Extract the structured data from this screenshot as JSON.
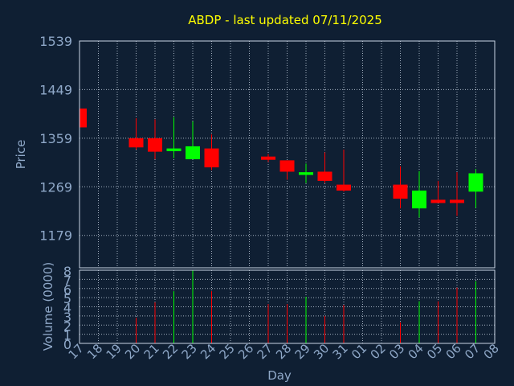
{
  "chart_data": [
    {
      "type": "candlestick",
      "title": "ABDP - last updated 07/11/2025",
      "ylabel": "Price",
      "ylim": [
        1119,
        1539
      ],
      "yticks": [
        1179,
        1269,
        1359,
        1449,
        1539
      ],
      "categories": [
        "17",
        "18",
        "19",
        "20",
        "21",
        "22",
        "23",
        "24",
        "25",
        "26",
        "27",
        "28",
        "29",
        "30",
        "31",
        "01",
        "02",
        "03",
        "04",
        "05",
        "06",
        "07",
        "08"
      ],
      "candles": [
        {
          "day": "17",
          "open": 1414,
          "close": 1379,
          "high": 1414,
          "low": 1379
        },
        {
          "day": "20",
          "open": 1359,
          "close": 1342,
          "high": 1396,
          "low": 1338
        },
        {
          "day": "21",
          "open": 1359,
          "close": 1334,
          "high": 1394,
          "low": 1320
        },
        {
          "day": "22",
          "open": 1335,
          "close": 1340,
          "high": 1398,
          "low": 1322
        },
        {
          "day": "23",
          "open": 1320,
          "close": 1344,
          "high": 1390,
          "low": 1320
        },
        {
          "day": "24",
          "open": 1340,
          "close": 1305,
          "high": 1366,
          "low": 1300
        },
        {
          "day": "27",
          "open": 1325,
          "close": 1319,
          "high": 1330,
          "low": 1315
        },
        {
          "day": "28",
          "open": 1318,
          "close": 1297,
          "high": 1318,
          "low": 1282
        },
        {
          "day": "29",
          "open": 1291,
          "close": 1296,
          "high": 1312,
          "low": 1276
        },
        {
          "day": "30",
          "open": 1297,
          "close": 1280,
          "high": 1333,
          "low": 1276
        },
        {
          "day": "31",
          "open": 1273,
          "close": 1262,
          "high": 1338,
          "low": 1260
        },
        {
          "day": "03",
          "open": 1273,
          "close": 1247,
          "high": 1307,
          "low": 1229
        },
        {
          "day": "04",
          "open": 1229,
          "close": 1262,
          "high": 1298,
          "low": 1212
        },
        {
          "day": "05",
          "open": 1245,
          "close": 1239,
          "high": 1280,
          "low": 1239
        },
        {
          "day": "06",
          "open": 1245,
          "close": 1239,
          "high": 1296,
          "low": 1215
        },
        {
          "day": "07",
          "open": 1260,
          "close": 1294,
          "high": 1302,
          "low": 1230
        }
      ]
    },
    {
      "type": "bar",
      "xlabel": "Day",
      "ylabel": "Volume (0000)",
      "ylim": [
        0,
        8
      ],
      "yticks": [
        0,
        1,
        2,
        3,
        4,
        5,
        6,
        7,
        8
      ],
      "categories": [
        "17",
        "18",
        "19",
        "20",
        "21",
        "22",
        "23",
        "24",
        "25",
        "26",
        "27",
        "28",
        "29",
        "30",
        "31",
        "01",
        "02",
        "03",
        "04",
        "05",
        "06",
        "07",
        "08"
      ],
      "volumes": [
        {
          "day": "20",
          "value": 2.8,
          "color": "#ff0000"
        },
        {
          "day": "21",
          "value": 4.5,
          "color": "#ff0000"
        },
        {
          "day": "22",
          "value": 5.7,
          "color": "#00ff00"
        },
        {
          "day": "23",
          "value": 8.0,
          "color": "#00ff00"
        },
        {
          "day": "24",
          "value": 5.7,
          "color": "#ff0000"
        },
        {
          "day": "27",
          "value": 4.3,
          "color": "#ff0000"
        },
        {
          "day": "28",
          "value": 4.3,
          "color": "#ff0000"
        },
        {
          "day": "29",
          "value": 5.1,
          "color": "#00ff00"
        },
        {
          "day": "30",
          "value": 3.0,
          "color": "#ff0000"
        },
        {
          "day": "31",
          "value": 4.2,
          "color": "#ff0000"
        },
        {
          "day": "03",
          "value": 2.3,
          "color": "#ff0000"
        },
        {
          "day": "04",
          "value": 4.6,
          "color": "#00ff00"
        },
        {
          "day": "05",
          "value": 4.6,
          "color": "#ff0000"
        },
        {
          "day": "06",
          "value": 6.1,
          "color": "#ff0000"
        },
        {
          "day": "07",
          "value": 6.8,
          "color": "#00ff00"
        }
      ]
    }
  ],
  "colors": {
    "background": "#0f1f33",
    "up": "#00ff00",
    "down": "#ff0000",
    "grid": "#c8d4e4",
    "axis_text": "#8fa8c8",
    "title": "#ffff00"
  }
}
